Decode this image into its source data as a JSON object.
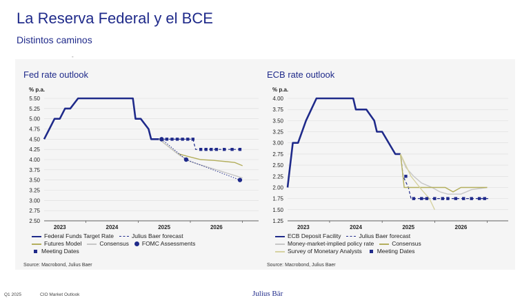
{
  "header": {
    "title": "La Reserva Federal y el BCE",
    "subtitle": "Distintos caminos",
    "mark": "-"
  },
  "footer": {
    "quarter": "Q1 2025",
    "publication": "CIO Market Outlook",
    "brand": "Julius Bär"
  },
  "colors": {
    "navy": "#1f2a8a",
    "olive": "#b3ae5c",
    "gray": "#c6c6c6",
    "panel": "#f5f5f5"
  },
  "chart_data": [
    {
      "type": "line",
      "title": "Fed rate outlook",
      "unit": "% p.a.",
      "ylim": [
        2.5,
        5.5
      ],
      "yticks": [
        "5.50",
        "5.25",
        "5.00",
        "4.75",
        "4.50",
        "4.25",
        "4.00",
        "3.75",
        "3.50",
        "3.25",
        "3.00",
        "2.75",
        "2.50"
      ],
      "xlim": [
        2022.7,
        2026.9
      ],
      "xticks": [
        {
          "label": "2023",
          "x": 2023.0
        },
        {
          "label": "2024",
          "x": 2024.0
        },
        {
          "label": "2025",
          "x": 2025.0
        },
        {
          "label": "2026",
          "x": 2026.0
        }
      ],
      "grid": true,
      "series": [
        {
          "name": "Federal Funds Target Rate",
          "style": "solid-thick",
          "color": "#1f2a8a",
          "points": [
            [
              2022.7,
              4.5
            ],
            [
              2022.8,
              4.75
            ],
            [
              2022.9,
              5.0
            ],
            [
              2023.0,
              5.0
            ],
            [
              2023.1,
              5.25
            ],
            [
              2023.2,
              5.25
            ],
            [
              2023.35,
              5.5
            ],
            [
              2024.15,
              5.5
            ],
            [
              2024.4,
              5.5
            ],
            [
              2024.45,
              5.0
            ],
            [
              2024.55,
              5.0
            ],
            [
              2024.7,
              4.75
            ],
            [
              2024.75,
              4.5
            ],
            [
              2024.9,
              4.5
            ]
          ]
        },
        {
          "name": "Julius Baer forecast",
          "style": "dashed",
          "color": "#1f2a8a",
          "points": [
            [
              2024.9,
              4.5
            ],
            [
              2025.0,
              4.5
            ],
            [
              2025.55,
              4.5
            ],
            [
              2025.6,
              4.25
            ],
            [
              2026.4,
              4.25
            ],
            [
              2026.5,
              4.25
            ]
          ]
        },
        {
          "name": "Futures Model",
          "style": "solid",
          "color": "#b3ae5c",
          "points": [
            [
              2024.9,
              4.5
            ],
            [
              2025.05,
              4.35
            ],
            [
              2025.25,
              4.15
            ],
            [
              2025.45,
              4.08
            ],
            [
              2025.7,
              4.0
            ],
            [
              2025.95,
              3.98
            ],
            [
              2026.2,
              3.95
            ],
            [
              2026.35,
              3.93
            ],
            [
              2026.5,
              3.85
            ]
          ]
        },
        {
          "name": "Consensus",
          "style": "solid",
          "color": "#c6c6c6",
          "points": [
            [
              2024.9,
              4.5
            ],
            [
              2025.1,
              4.3
            ],
            [
              2025.3,
              4.1
            ],
            [
              2025.5,
              3.95
            ],
            [
              2025.75,
              3.85
            ],
            [
              2026.0,
              3.75
            ],
            [
              2026.25,
              3.65
            ],
            [
              2026.5,
              3.55
            ]
          ]
        },
        {
          "name": "Meeting Dates",
          "style": "square-dashed",
          "color": "#1f2a8a",
          "points": [
            [
              2024.95,
              4.5
            ],
            [
              2025.05,
              4.5
            ],
            [
              2025.15,
              4.5
            ],
            [
              2025.25,
              4.5
            ],
            [
              2025.35,
              4.5
            ],
            [
              2025.45,
              4.5
            ],
            [
              2025.55,
              4.5
            ],
            [
              2025.7,
              4.25
            ],
            [
              2025.8,
              4.25
            ],
            [
              2025.9,
              4.25
            ],
            [
              2026.0,
              4.25
            ],
            [
              2026.15,
              4.25
            ],
            [
              2026.3,
              4.25
            ],
            [
              2026.45,
              4.25
            ]
          ]
        },
        {
          "name": "FOMC Assessments",
          "style": "dots",
          "color": "#1f2a8a",
          "points": [
            [
              2024.95,
              4.5
            ],
            [
              2025.42,
              4.0
            ],
            [
              2026.45,
              3.5
            ]
          ]
        },
        {
          "name": "",
          "style": "dotted",
          "color": "#1f2a8a",
          "points": [
            [
              2024.95,
              4.5
            ],
            [
              2025.42,
              4.0
            ],
            [
              2026.45,
              3.5
            ]
          ]
        }
      ],
      "legend": [
        [
          {
            "name": "Federal Funds Target Rate",
            "swatch": "line"
          },
          {
            "name": "Julius Baer forecast",
            "swatch": "dash"
          }
        ],
        [
          {
            "name": "Futures Model",
            "swatch": "olive-line"
          },
          {
            "name": "Consensus",
            "swatch": "gray-line"
          },
          {
            "name": "FOMC Assessments",
            "swatch": "dot"
          }
        ],
        [
          {
            "name": "Meeting Dates",
            "swatch": "square"
          }
        ]
      ],
      "source": "Source: Macrobond, Julius Baer"
    },
    {
      "type": "line",
      "title": "ECB rate outlook",
      "unit": "% p.a.",
      "ylim": [
        1.25,
        4.0
      ],
      "yticks": [
        "4.00",
        "3.75",
        "3.50",
        "3.25",
        "3.00",
        "2.75",
        "2.50",
        "2.25",
        "2.00",
        "1.75",
        "1.50",
        "1.25"
      ],
      "xlim": [
        2022.7,
        2026.9
      ],
      "xticks": [
        {
          "label": "2023",
          "x": 2023.0
        },
        {
          "label": "2024",
          "x": 2024.0
        },
        {
          "label": "2025",
          "x": 2025.0
        },
        {
          "label": "2026",
          "x": 2026.0
        }
      ],
      "grid": true,
      "series": [
        {
          "name": "ECB Deposit Facility",
          "style": "solid-thick",
          "color": "#1f2a8a",
          "points": [
            [
              2022.7,
              2.0
            ],
            [
              2022.8,
              3.0
            ],
            [
              2022.9,
              3.0
            ],
            [
              2023.05,
              3.5
            ],
            [
              2023.15,
              3.75
            ],
            [
              2023.25,
              4.0
            ],
            [
              2023.7,
              4.0
            ],
            [
              2023.95,
              4.0
            ],
            [
              2024.0,
              3.75
            ],
            [
              2024.2,
              3.75
            ],
            [
              2024.35,
              3.5
            ],
            [
              2024.4,
              3.25
            ],
            [
              2024.5,
              3.25
            ],
            [
              2024.75,
              2.75
            ],
            [
              2024.85,
              2.75
            ]
          ]
        },
        {
          "name": "Julius Baer forecast",
          "style": "dashed",
          "color": "#1f2a8a",
          "points": [
            [
              2024.85,
              2.75
            ],
            [
              2024.9,
              2.25
            ],
            [
              2025.0,
              2.0
            ],
            [
              2025.05,
              1.75
            ],
            [
              2026.55,
              1.75
            ]
          ]
        },
        {
          "name": "Money-market-implied policy rate",
          "style": "solid",
          "color": "#c6c6c6",
          "points": [
            [
              2024.85,
              2.75
            ],
            [
              2024.95,
              2.45
            ],
            [
              2025.1,
              2.25
            ],
            [
              2025.25,
              2.1
            ],
            [
              2025.45,
              2.0
            ],
            [
              2025.6,
              1.9
            ],
            [
              2025.75,
              1.85
            ],
            [
              2026.0,
              1.85
            ],
            [
              2026.2,
              1.95
            ],
            [
              2026.5,
              2.0
            ]
          ]
        },
        {
          "name": "Consensus",
          "style": "solid",
          "color": "#b3ae5c",
          "points": [
            [
              2024.85,
              2.75
            ],
            [
              2024.92,
              2.0
            ],
            [
              2025.2,
              2.0
            ],
            [
              2025.7,
              2.0
            ],
            [
              2025.85,
              1.9
            ],
            [
              2026.0,
              2.0
            ],
            [
              2026.5,
              2.0
            ]
          ]
        },
        {
          "name": "Survey of Monetary Analysts",
          "style": "solid",
          "color": "#d6d2a0",
          "points": [
            [
              2024.85,
              2.75
            ],
            [
              2025.05,
              2.25
            ],
            [
              2025.25,
              1.95
            ],
            [
              2025.4,
              1.75
            ],
            [
              2025.5,
              1.5
            ]
          ]
        },
        {
          "name": "Meeting Dates",
          "style": "square-dashed",
          "color": "#1f2a8a",
          "points": [
            [
              2024.95,
              2.25
            ],
            [
              2025.1,
              1.75
            ],
            [
              2025.25,
              1.75
            ],
            [
              2025.35,
              1.75
            ],
            [
              2025.5,
              1.75
            ],
            [
              2025.65,
              1.75
            ],
            [
              2025.75,
              1.75
            ],
            [
              2025.9,
              1.75
            ],
            [
              2026.05,
              1.75
            ],
            [
              2026.2,
              1.75
            ],
            [
              2026.35,
              1.75
            ],
            [
              2026.45,
              1.75
            ]
          ]
        }
      ],
      "legend": [
        [
          {
            "name": "ECB Deposit Facility",
            "swatch": "line"
          },
          {
            "name": "Julius Baer forecast",
            "swatch": "dash"
          }
        ],
        [
          {
            "name": "Money-market-implied policy rate",
            "swatch": "gray-line"
          },
          {
            "name": "Consensus",
            "swatch": "olive-line"
          }
        ],
        [
          {
            "name": "Survey of Monetary Analysts",
            "swatch": "light-olive-line"
          },
          {
            "name": "Meeting Dates",
            "swatch": "square"
          }
        ]
      ],
      "source": "Source: Macrobond, Julius Baer"
    }
  ]
}
